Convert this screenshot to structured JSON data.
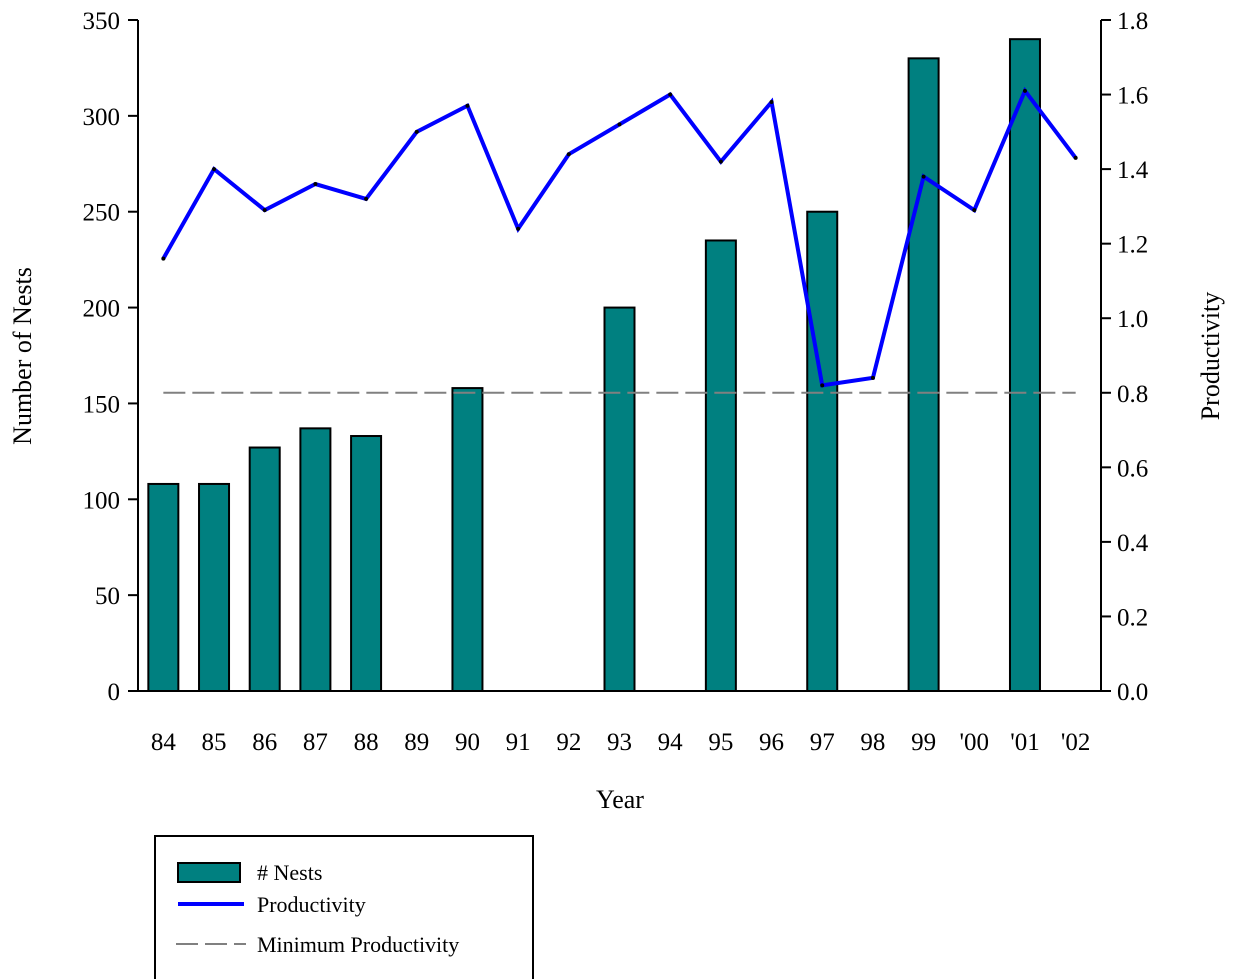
{
  "chart_data": {
    "type": "bar",
    "categories": [
      "84",
      "85",
      "86",
      "87",
      "88",
      "89",
      "90",
      "91",
      "92",
      "93",
      "94",
      "95",
      "96",
      "97",
      "98",
      "99",
      "'00",
      "'01",
      "'02"
    ],
    "series": [
      {
        "name": "# Nests",
        "type": "bar",
        "axis": "left",
        "color": "#008080",
        "values": [
          108,
          108,
          127,
          137,
          133,
          null,
          158,
          null,
          null,
          200,
          null,
          235,
          null,
          250,
          null,
          330,
          null,
          340,
          null
        ]
      },
      {
        "name": "Productivity",
        "type": "line",
        "axis": "right",
        "color": "#0000ff",
        "values": [
          1.16,
          1.4,
          1.29,
          1.36,
          1.32,
          1.5,
          1.57,
          1.24,
          1.44,
          1.52,
          1.6,
          1.42,
          1.58,
          0.82,
          0.84,
          1.38,
          1.29,
          1.61,
          1.43
        ]
      },
      {
        "name": "Minimum Productivity",
        "type": "reference-line",
        "axis": "right",
        "color": "#808080",
        "value": 0.8
      }
    ],
    "xlabel": "Year",
    "ylabel": "Number of Nests",
    "y2label": "Productivity",
    "ylim": [
      0,
      350
    ],
    "y2lim": [
      0.0,
      1.8
    ],
    "yticks": [
      "0",
      "50",
      "100",
      "150",
      "200",
      "250",
      "300",
      "350"
    ],
    "y2ticks": [
      "0.0",
      "0.2",
      "0.4",
      "0.6",
      "0.8",
      "1.0",
      "1.2",
      "1.4",
      "1.6",
      "1.8"
    ],
    "grid": false,
    "legend": {
      "position": "bottom-left",
      "entries": [
        "# Nests",
        "Productivity",
        "Minimum Productivity"
      ]
    }
  }
}
